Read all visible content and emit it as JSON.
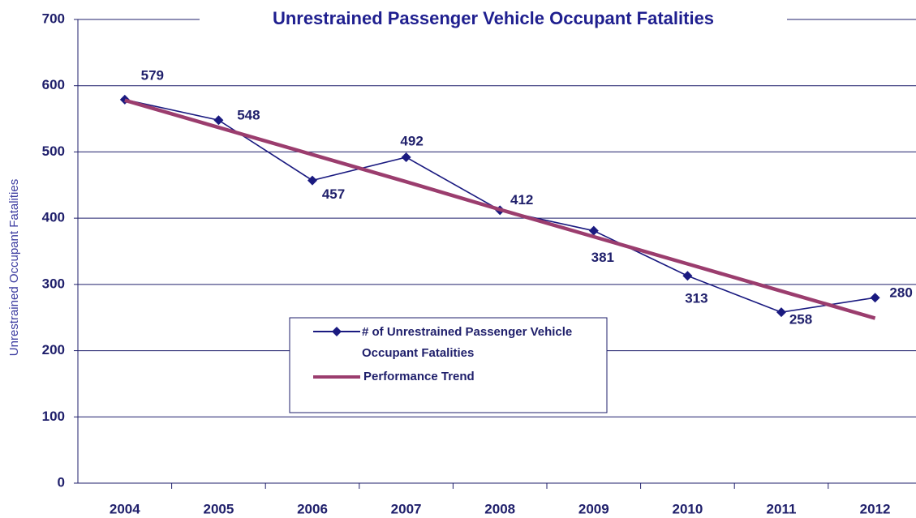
{
  "chart_data": {
    "type": "line",
    "title": "Unrestrained Passenger Vehicle Occupant Fatalities",
    "y_label": "Unrestrained Occupant Fatalities",
    "categories": [
      "2004",
      "2005",
      "2006",
      "2007",
      "2008",
      "2009",
      "2010",
      "2011",
      "2012"
    ],
    "series": [
      {
        "name": "# of Unrestrained Passenger Vehicle Occupant Fatalities",
        "color": "#1a1a80",
        "values": [
          579,
          548,
          457,
          492,
          412,
          381,
          313,
          258,
          280
        ],
        "markers": true,
        "data_labels": true
      },
      {
        "name": "Performance Trend",
        "color": "#9b3d6e",
        "values": [
          578,
          537,
          496,
          455,
          413,
          372,
          331,
          290,
          249
        ]
      }
    ],
    "ylim": [
      0,
      700
    ],
    "yticks": [
      0,
      100,
      200,
      300,
      400,
      500,
      600,
      700
    ],
    "grid": true
  }
}
